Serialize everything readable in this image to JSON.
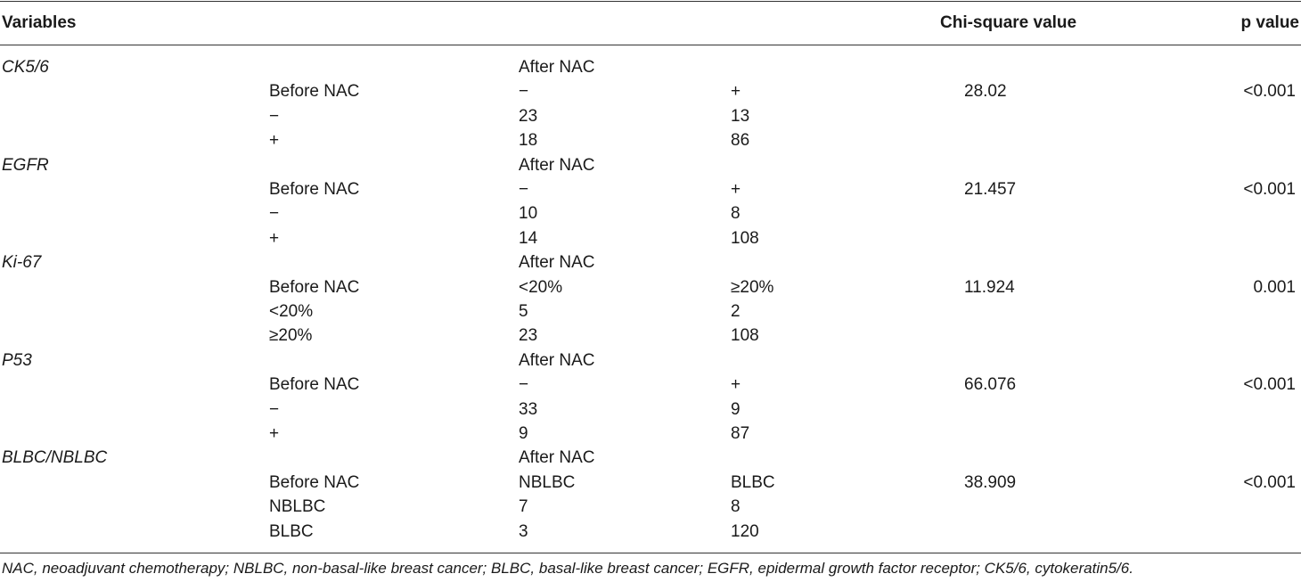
{
  "table": {
    "headers": {
      "variables": "Variables",
      "chi": "Chi-square value",
      "p": "p value"
    },
    "groups": [
      {
        "name": "CK5/6",
        "after_label": "After NAC",
        "before_label": "Before NAC",
        "col_a": "−",
        "col_b": "+",
        "chi": "28.02",
        "p": "<0.001",
        "rows": [
          {
            "label": "−",
            "a": "23",
            "b": "13"
          },
          {
            "label": "+",
            "a": "18",
            "b": "86"
          }
        ]
      },
      {
        "name": "EGFR",
        "after_label": "After NAC",
        "before_label": "Before NAC",
        "col_a": "−",
        "col_b": "+",
        "chi": "21.457",
        "p": "<0.001",
        "rows": [
          {
            "label": "−",
            "a": "10",
            "b": "8"
          },
          {
            "label": "+",
            "a": "14",
            "b": "108"
          }
        ]
      },
      {
        "name": "Ki-67",
        "after_label": "After NAC",
        "before_label": "Before NAC",
        "col_a": "<20%",
        "col_b": "≥20%",
        "chi": "11.924",
        "p": "0.001",
        "rows": [
          {
            "label": "<20%",
            "a": "5",
            "b": "2"
          },
          {
            "label": "≥20%",
            "a": "23",
            "b": "108"
          }
        ]
      },
      {
        "name": "P53",
        "after_label": "After NAC",
        "before_label": "Before NAC",
        "col_a": "−",
        "col_b": "+",
        "chi": "66.076",
        "p": "<0.001",
        "rows": [
          {
            "label": "−",
            "a": "33",
            "b": "9"
          },
          {
            "label": "+",
            "a": "9",
            "b": "87"
          }
        ]
      },
      {
        "name": "BLBC/NBLBC",
        "after_label": "After NAC",
        "before_label": "Before NAC",
        "col_a": "NBLBC",
        "col_b": "BLBC",
        "chi": "38.909",
        "p": "<0.001",
        "rows": [
          {
            "label": "NBLBC",
            "a": "7",
            "b": "8"
          },
          {
            "label": "BLBC",
            "a": "3",
            "b": "120"
          }
        ]
      }
    ],
    "footnote": "NAC, neoadjuvant chemotherapy; NBLBC, non-basal-like breast cancer; BLBC, basal-like breast cancer; EGFR, epidermal growth factor receptor; CK5/6, cytokeratin5/6."
  }
}
